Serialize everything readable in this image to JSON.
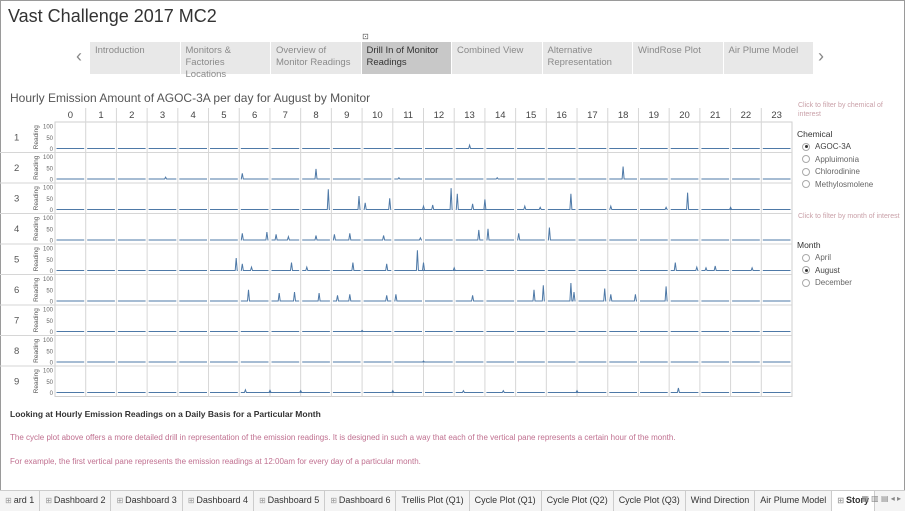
{
  "app": {
    "title": "Vast Challenge 2017 MC2"
  },
  "story_nav": {
    "tabs": [
      {
        "label": "Introduction",
        "active": false
      },
      {
        "label": "Monitors & Factories Locations",
        "active": false
      },
      {
        "label": "Overview of Monitor Readings",
        "active": false
      },
      {
        "label": "Drill In of Monitor Readings",
        "active": true
      },
      {
        "label": "Combined View",
        "active": false
      },
      {
        "label": "Alternative Representation",
        "active": false
      },
      {
        "label": "WindRose Plot",
        "active": false
      },
      {
        "label": "Air Plume Model",
        "active": false
      }
    ],
    "prev_icon": "chevron-left-icon",
    "next_icon": "chevron-right-icon"
  },
  "chart_title": "Hourly Emission Amount of AGOC-3A per day for August by Monitor",
  "chart_data": {
    "type": "line",
    "hours": [
      "0",
      "1",
      "2",
      "3",
      "4",
      "5",
      "6",
      "7",
      "8",
      "9",
      "10",
      "11",
      "12",
      "13",
      "14",
      "15",
      "16",
      "17",
      "18",
      "19",
      "20",
      "21",
      "22",
      "23"
    ],
    "monitors": [
      "1",
      "2",
      "3",
      "4",
      "5",
      "6",
      "7",
      "8",
      "9"
    ],
    "ylabel": "Reading",
    "yticks": [
      "100",
      "50",
      "0"
    ],
    "ylim": [
      0,
      100
    ],
    "line_color": "#4e79a7",
    "spikes": [
      {
        "monitor": "1",
        "x": 13.5,
        "y": 15
      },
      {
        "monitor": "2",
        "x": 3.6,
        "y": 8
      },
      {
        "monitor": "2",
        "x": 6.1,
        "y": 25
      },
      {
        "monitor": "2",
        "x": 8.5,
        "y": 45
      },
      {
        "monitor": "2",
        "x": 18.5,
        "y": 55
      },
      {
        "monitor": "2",
        "x": 11.2,
        "y": 6
      },
      {
        "monitor": "2",
        "x": 14.4,
        "y": 6
      },
      {
        "monitor": "3",
        "x": 8.9,
        "y": 90
      },
      {
        "monitor": "3",
        "x": 9.9,
        "y": 60
      },
      {
        "monitor": "3",
        "x": 10.1,
        "y": 30
      },
      {
        "monitor": "3",
        "x": 10.9,
        "y": 50
      },
      {
        "monitor": "3",
        "x": 12.0,
        "y": 15
      },
      {
        "monitor": "3",
        "x": 12.3,
        "y": 20
      },
      {
        "monitor": "3",
        "x": 12.9,
        "y": 95
      },
      {
        "monitor": "3",
        "x": 13.1,
        "y": 70
      },
      {
        "monitor": "3",
        "x": 13.6,
        "y": 25
      },
      {
        "monitor": "3",
        "x": 14.0,
        "y": 45
      },
      {
        "monitor": "3",
        "x": 15.3,
        "y": 15
      },
      {
        "monitor": "3",
        "x": 15.8,
        "y": 10
      },
      {
        "monitor": "3",
        "x": 16.8,
        "y": 70
      },
      {
        "monitor": "3",
        "x": 18.1,
        "y": 15
      },
      {
        "monitor": "3",
        "x": 19.9,
        "y": 10
      },
      {
        "monitor": "3",
        "x": 20.6,
        "y": 75
      },
      {
        "monitor": "3",
        "x": 22.0,
        "y": 10
      },
      {
        "monitor": "4",
        "x": 6.1,
        "y": 30
      },
      {
        "monitor": "4",
        "x": 6.9,
        "y": 35
      },
      {
        "monitor": "4",
        "x": 7.2,
        "y": 25
      },
      {
        "monitor": "4",
        "x": 7.6,
        "y": 15
      },
      {
        "monitor": "4",
        "x": 8.5,
        "y": 20
      },
      {
        "monitor": "4",
        "x": 9.1,
        "y": 25
      },
      {
        "monitor": "4",
        "x": 9.6,
        "y": 30
      },
      {
        "monitor": "4",
        "x": 10.7,
        "y": 20
      },
      {
        "monitor": "4",
        "x": 13.8,
        "y": 45
      },
      {
        "monitor": "4",
        "x": 14.1,
        "y": 50
      },
      {
        "monitor": "4",
        "x": 15.1,
        "y": 30
      },
      {
        "monitor": "4",
        "x": 16.1,
        "y": 55
      },
      {
        "monitor": "4",
        "x": 11.9,
        "y": 10
      },
      {
        "monitor": "5",
        "x": 5.9,
        "y": 55
      },
      {
        "monitor": "5",
        "x": 6.1,
        "y": 30
      },
      {
        "monitor": "5",
        "x": 6.4,
        "y": 15
      },
      {
        "monitor": "5",
        "x": 7.7,
        "y": 35
      },
      {
        "monitor": "5",
        "x": 8.2,
        "y": 15
      },
      {
        "monitor": "5",
        "x": 9.7,
        "y": 35
      },
      {
        "monitor": "5",
        "x": 10.8,
        "y": 30
      },
      {
        "monitor": "5",
        "x": 11.8,
        "y": 90
      },
      {
        "monitor": "5",
        "x": 12.0,
        "y": 35
      },
      {
        "monitor": "5",
        "x": 13.0,
        "y": 12
      },
      {
        "monitor": "5",
        "x": 20.2,
        "y": 35
      },
      {
        "monitor": "5",
        "x": 20.9,
        "y": 15
      },
      {
        "monitor": "5",
        "x": 21.2,
        "y": 12
      },
      {
        "monitor": "5",
        "x": 21.5,
        "y": 20
      },
      {
        "monitor": "5",
        "x": 22.7,
        "y": 12
      },
      {
        "monitor": "6",
        "x": 6.3,
        "y": 50
      },
      {
        "monitor": "6",
        "x": 7.3,
        "y": 35
      },
      {
        "monitor": "6",
        "x": 7.8,
        "y": 40
      },
      {
        "monitor": "6",
        "x": 8.6,
        "y": 35
      },
      {
        "monitor": "6",
        "x": 9.2,
        "y": 25
      },
      {
        "monitor": "6",
        "x": 9.6,
        "y": 30
      },
      {
        "monitor": "6",
        "x": 10.8,
        "y": 25
      },
      {
        "monitor": "6",
        "x": 11.1,
        "y": 30
      },
      {
        "monitor": "6",
        "x": 13.6,
        "y": 25
      },
      {
        "monitor": "6",
        "x": 15.6,
        "y": 50
      },
      {
        "monitor": "6",
        "x": 15.9,
        "y": 70
      },
      {
        "monitor": "6",
        "x": 16.8,
        "y": 80
      },
      {
        "monitor": "6",
        "x": 16.9,
        "y": 40
      },
      {
        "monitor": "6",
        "x": 17.9,
        "y": 55
      },
      {
        "monitor": "6",
        "x": 18.1,
        "y": 30
      },
      {
        "monitor": "6",
        "x": 18.9,
        "y": 30
      },
      {
        "monitor": "6",
        "x": 19.9,
        "y": 65
      },
      {
        "monitor": "7",
        "x": 10.0,
        "y": 5
      },
      {
        "monitor": "8",
        "x": 12.0,
        "y": 4
      },
      {
        "monitor": "9",
        "x": 6.2,
        "y": 12
      },
      {
        "monitor": "9",
        "x": 7.0,
        "y": 10
      },
      {
        "monitor": "9",
        "x": 8.0,
        "y": 8
      },
      {
        "monitor": "9",
        "x": 11.0,
        "y": 8
      },
      {
        "monitor": "9",
        "x": 13.3,
        "y": 8
      },
      {
        "monitor": "9",
        "x": 14.6,
        "y": 8
      },
      {
        "monitor": "9",
        "x": 17.0,
        "y": 8
      },
      {
        "monitor": "9",
        "x": 20.3,
        "y": 20
      }
    ]
  },
  "chemical_filter": {
    "note": "Click to filter by chemical of interest",
    "title": "Chemical",
    "options": [
      {
        "label": "AGOC-3A",
        "selected": true
      },
      {
        "label": "Appluimonia",
        "selected": false
      },
      {
        "label": "Chlorodinine",
        "selected": false
      },
      {
        "label": "Methylosmolene",
        "selected": false
      }
    ]
  },
  "month_filter": {
    "note": "Click to filter by month of interest",
    "title": "Month",
    "options": [
      {
        "label": "April",
        "selected": false
      },
      {
        "label": "August",
        "selected": true
      },
      {
        "label": "December",
        "selected": false
      }
    ]
  },
  "description": {
    "heading": "Looking at Hourly Emission Readings on a Daily Basis for a Particular Month",
    "line1": "The cycle plot above offers a more detailed drill in representation of the emission readings. It is designed in such a way that each of the vertical pane represents a certain hour of the month.",
    "line2": "For example, the first vertical pane represents the emission readings at 12:00am for every day of a particular month."
  },
  "sheet_tabs": [
    {
      "label": "ard 1",
      "icon": true,
      "active": false
    },
    {
      "label": "Dashboard 2",
      "icon": true,
      "active": false
    },
    {
      "label": "Dashboard 3",
      "icon": true,
      "active": false
    },
    {
      "label": "Dashboard 4",
      "icon": true,
      "active": false
    },
    {
      "label": "Dashboard 5",
      "icon": true,
      "active": false
    },
    {
      "label": "Dashboard 6",
      "icon": true,
      "active": false
    },
    {
      "label": "Trellis Plot (Q1)",
      "icon": false,
      "active": false
    },
    {
      "label": "Cycle Plot (Q1)",
      "icon": false,
      "active": false
    },
    {
      "label": "Cycle Plot (Q2)",
      "icon": false,
      "active": false
    },
    {
      "label": "Cycle Plot (Q3)",
      "icon": false,
      "active": false
    },
    {
      "label": "Wind Direction",
      "icon": false,
      "active": false
    },
    {
      "label": "Air Plume Model",
      "icon": false,
      "active": false
    },
    {
      "label": "Story",
      "icon": true,
      "active": true
    }
  ],
  "tab_controls": "▦ ▥ ▤ ◂ ▸"
}
